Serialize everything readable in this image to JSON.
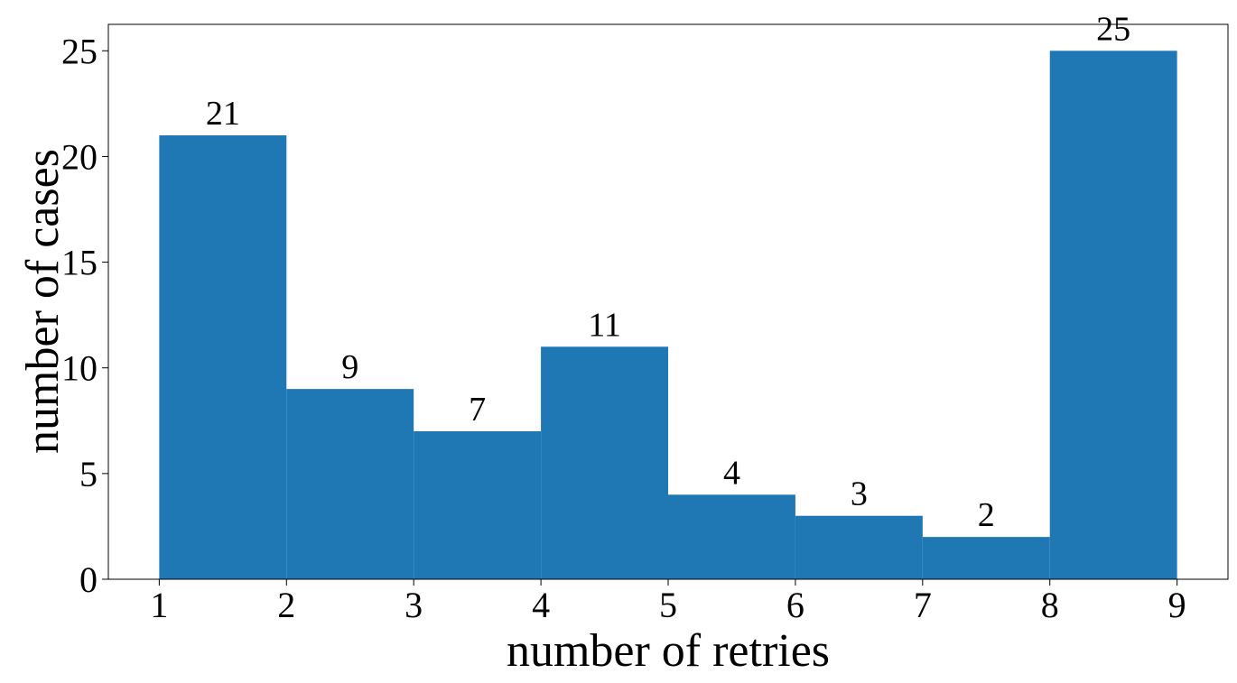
{
  "chart_data": {
    "type": "histogram",
    "xlabel": "number of retries",
    "ylabel": "number of cases",
    "bins": [
      1,
      2,
      3,
      4,
      5,
      6,
      7,
      8,
      9
    ],
    "values": [
      21,
      9,
      7,
      11,
      4,
      3,
      2,
      25
    ],
    "color": "#1f77b4",
    "xlim": [
      0.6,
      9.4
    ],
    "xticks": [
      1,
      2,
      3,
      4,
      5,
      6,
      7,
      8,
      9
    ],
    "ylim": [
      0,
      26.25
    ],
    "yticks": [
      0,
      5,
      10,
      15,
      20,
      25
    ]
  }
}
